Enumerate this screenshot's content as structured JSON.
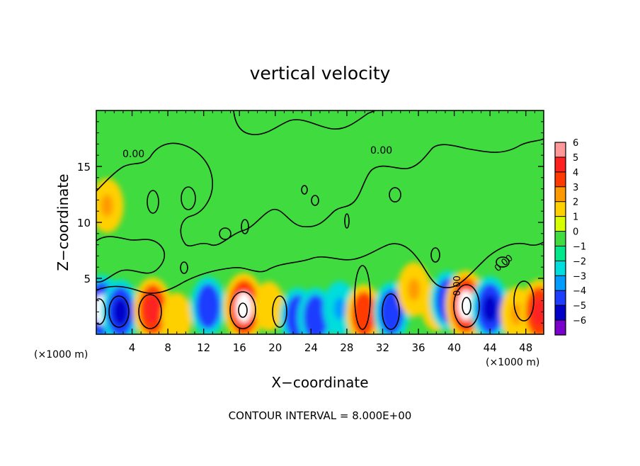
{
  "chart_data": {
    "type": "heatmap",
    "title": "vertical velocity",
    "xlabel": "X−coordinate",
    "ylabel": "Z−coordinate",
    "x_unit": "(×1000 m)",
    "z_unit": "(×1000 m)",
    "footer": "CONTOUR INTERVAL = 8.000E+00",
    "contour_label": "0.00",
    "x_ticks": [
      "4",
      "8",
      "12",
      "16",
      "20",
      "24",
      "28",
      "32",
      "36",
      "40",
      "44",
      "48"
    ],
    "z_ticks": [
      "5",
      "10",
      "15"
    ],
    "xlim": [
      0,
      50
    ],
    "zlim": [
      0,
      20
    ],
    "colorbar": {
      "ticks": [
        "6",
        "5",
        "4",
        "3",
        "2",
        "1",
        "0",
        "−1",
        "−2",
        "−3",
        "−4",
        "−5",
        "−6"
      ],
      "range": [
        -6,
        6
      ]
    },
    "features": [
      {
        "x": 0.6,
        "z": 2.2,
        "value": -6
      },
      {
        "x": 2.7,
        "z": 2.0,
        "value": -5
      },
      {
        "x": 6.3,
        "z": 2.2,
        "value": 5
      },
      {
        "x": 9.0,
        "z": 1.5,
        "value": 2
      },
      {
        "x": 12.5,
        "z": 2.5,
        "value": -4
      },
      {
        "x": 16.5,
        "z": 2.4,
        "value": 6
      },
      {
        "x": 19.3,
        "z": 2.5,
        "value": 2
      },
      {
        "x": 22.5,
        "z": 1.5,
        "value": -4
      },
      {
        "x": 24.5,
        "z": 1.5,
        "value": -4
      },
      {
        "x": 27.2,
        "z": 2.3,
        "value": -3
      },
      {
        "x": 29.9,
        "z": 1.8,
        "value": 4
      },
      {
        "x": 33.0,
        "z": 2.0,
        "value": -4
      },
      {
        "x": 35.5,
        "z": 4.0,
        "value": 3
      },
      {
        "x": 38.0,
        "z": 2.5,
        "value": 2
      },
      {
        "x": 39.3,
        "z": 3.0,
        "value": -4
      },
      {
        "x": 41.3,
        "z": 2.6,
        "value": 6
      },
      {
        "x": 44.0,
        "z": 2.3,
        "value": -5
      },
      {
        "x": 47.0,
        "z": 1.8,
        "value": 3
      },
      {
        "x": 49.5,
        "z": 2.0,
        "value": 5
      },
      {
        "x": 1.2,
        "z": 11.5,
        "value": 3
      }
    ]
  }
}
